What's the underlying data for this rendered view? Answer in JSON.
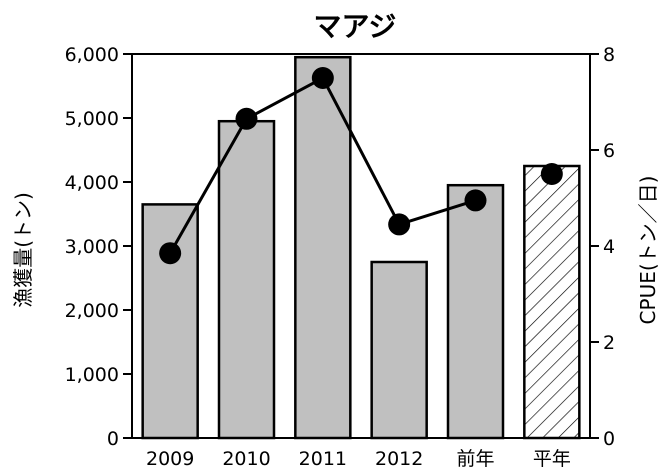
{
  "chart_data": {
    "type": "bar",
    "title": "マアジ",
    "categories": [
      "2009",
      "2010",
      "2011",
      "2012",
      "前年",
      "平年"
    ],
    "series": [
      {
        "type": "bar",
        "axis": "left",
        "values": [
          3650,
          4950,
          5950,
          2750,
          3950,
          4250
        ],
        "pattern": [
          "solid",
          "solid",
          "solid",
          "solid",
          "solid",
          "hatched"
        ]
      },
      {
        "type": "line",
        "axis": "right",
        "values": [
          3.85,
          6.65,
          7.5,
          4.45,
          4.95,
          5.5
        ],
        "line_segments": [
          [
            0,
            1,
            2,
            3,
            4
          ],
          [
            5
          ]
        ]
      }
    ],
    "ylabel": "漁獲量(トン)",
    "y2label": "CPUE(トン／日)",
    "ylim": [
      0,
      6000
    ],
    "y2lim": [
      0,
      8
    ],
    "yticks": [
      "0",
      "1,000",
      "2,000",
      "3,000",
      "4,000",
      "5,000",
      "6,000"
    ],
    "y2ticks": [
      "0",
      "2",
      "4",
      "6",
      "8"
    ],
    "grid": false,
    "colors": {
      "bar_fill": "#c0c0c0",
      "stroke": "#000000",
      "background": "#ffffff"
    }
  }
}
